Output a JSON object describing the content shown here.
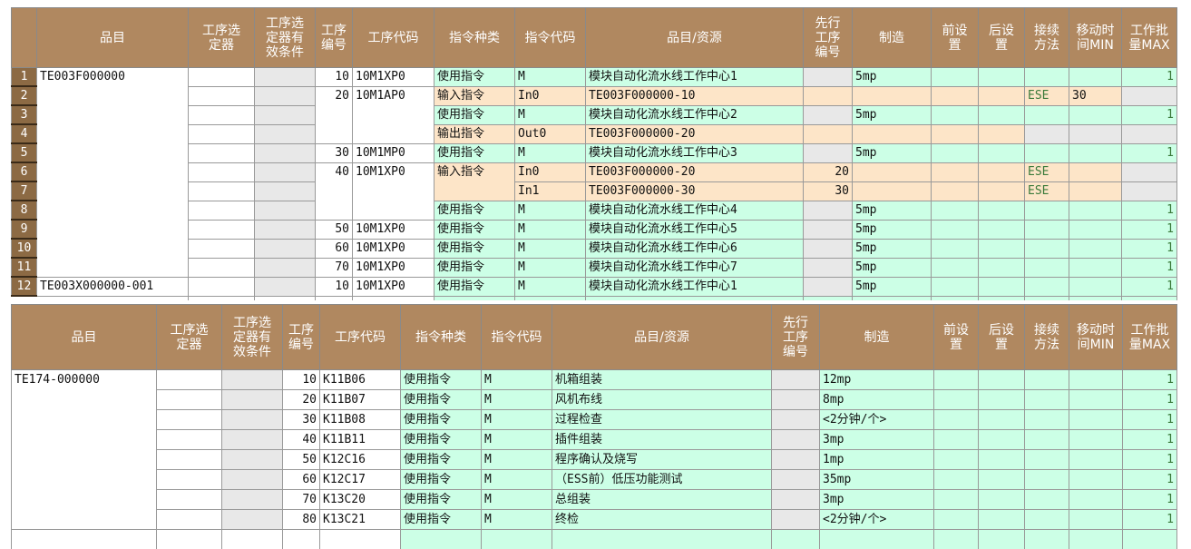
{
  "headers": [
    "品目",
    "工序选定器",
    "工序选定器有效条件",
    "工序编号",
    "工序代码",
    "指令种类",
    "指令代码",
    "品目/资源",
    "先行工序编号",
    "制造",
    "前设置",
    "后设置",
    "接续方法",
    "移动时间MIN",
    "工作批量MAX"
  ],
  "header_lines": [
    [
      "品目"
    ],
    [
      "工序选",
      "定器"
    ],
    [
      "工序选",
      "定器有",
      "效条件"
    ],
    [
      "工序",
      "编号"
    ],
    [
      "工序代码"
    ],
    [
      "指令种类"
    ],
    [
      "指令代码"
    ],
    [
      "品目/资源"
    ],
    [
      "先行",
      "工序",
      "编号"
    ],
    [
      "制造"
    ],
    [
      "前设",
      "置"
    ],
    [
      "后设",
      "置"
    ],
    [
      "接续",
      "方法"
    ],
    [
      "移动时",
      "间MIN"
    ],
    [
      "工作批",
      "量MAX"
    ]
  ],
  "colors": {
    "header": "#b08860",
    "use_row": "#ccffe6",
    "io_row": "#fde5c8",
    "gray": "#e8e8e8",
    "ese_text": "#3a7a3a"
  },
  "table1": {
    "rows": [
      {
        "rn": "1",
        "kind": "use",
        "item": "TE003F000000",
        "seq": "10",
        "code": "10M1XP0",
        "type": "使用指令",
        "icode": "M",
        "res": "模块自动化流水线工作中心1",
        "prev": "",
        "make": "5mp",
        "conn": "",
        "move": "",
        "batch": "1"
      },
      {
        "rn": "2",
        "kind": "in",
        "item": null,
        "seq": "20",
        "code": "10M1AP0",
        "type": "输入指令",
        "icode": "In0",
        "res": "TE003F000000-10",
        "prev": "",
        "make": "",
        "conn": "ESE",
        "move": "30",
        "batch": ""
      },
      {
        "rn": "3",
        "kind": "use",
        "item": null,
        "seq": null,
        "code": null,
        "type": "使用指令",
        "icode": "M",
        "res": "模块自动化流水线工作中心2",
        "prev": "",
        "make": "5mp",
        "conn": "",
        "move": "",
        "batch": "1"
      },
      {
        "rn": "4",
        "kind": "out",
        "item": null,
        "seq": null,
        "code": null,
        "type": "输出指令",
        "icode": "Out0",
        "res": "TE003F000000-20",
        "prev": "",
        "make": "",
        "conn": "",
        "move": "",
        "batch": ""
      },
      {
        "rn": "5",
        "kind": "use",
        "item": null,
        "seq": "30",
        "code": "10M1MP0",
        "type": "使用指令",
        "icode": "M",
        "res": "模块自动化流水线工作中心3",
        "prev": "",
        "make": "5mp",
        "conn": "",
        "move": "",
        "batch": "1"
      },
      {
        "rn": "6",
        "kind": "in",
        "item": null,
        "seq": "40",
        "code": "10M1XP0",
        "type": "输入指令",
        "icode": "In0",
        "res": "TE003F000000-20",
        "prev": "20",
        "make": "",
        "conn": "ESE",
        "move": "",
        "batch": ""
      },
      {
        "rn": "7",
        "kind": "in",
        "item": null,
        "seq": null,
        "code": null,
        "type": null,
        "icode": "In1",
        "res": "TE003F000000-30",
        "prev": "30",
        "make": "",
        "conn": "ESE",
        "move": "",
        "batch": ""
      },
      {
        "rn": "8",
        "kind": "use",
        "item": null,
        "seq": null,
        "code": null,
        "type": "使用指令",
        "icode": "M",
        "res": "模块自动化流水线工作中心4",
        "prev": "",
        "make": "5mp",
        "conn": "",
        "move": "",
        "batch": "1"
      },
      {
        "rn": "9",
        "kind": "use",
        "item": null,
        "seq": "50",
        "code": "10M1XP0",
        "type": "使用指令",
        "icode": "M",
        "res": "模块自动化流水线工作中心5",
        "prev": "",
        "make": "5mp",
        "conn": "",
        "move": "",
        "batch": "1"
      },
      {
        "rn": "10",
        "kind": "use",
        "item": null,
        "seq": "60",
        "code": "10M1XP0",
        "type": "使用指令",
        "icode": "M",
        "res": "模块自动化流水线工作中心6",
        "prev": "",
        "make": "5mp",
        "conn": "",
        "move": "",
        "batch": "1"
      },
      {
        "rn": "11",
        "kind": "use",
        "item": null,
        "seq": "70",
        "code": "10M1XP0",
        "type": "使用指令",
        "icode": "M",
        "res": "模块自动化流水线工作中心7",
        "prev": "",
        "make": "5mp",
        "conn": "",
        "move": "",
        "batch": "1"
      },
      {
        "rn": "12",
        "kind": "use",
        "item": "TE003X000000-001",
        "seq": "10",
        "code": "10M1XP0",
        "type": "使用指令",
        "icode": "M",
        "res": "模块自动化流水线工作中心1",
        "prev": "",
        "make": "5mp",
        "conn": "",
        "move": "",
        "batch": "1"
      }
    ]
  },
  "table2": {
    "rows": [
      {
        "kind": "use",
        "item": "TE174-000000",
        "seq": "10",
        "code": "K11B06",
        "type": "使用指令",
        "icode": "M",
        "res": "机箱组装",
        "prev": "",
        "make": "12mp",
        "conn": "",
        "move": "",
        "batch": "1"
      },
      {
        "kind": "use",
        "item": null,
        "seq": "20",
        "code": "K11B07",
        "type": "使用指令",
        "icode": "M",
        "res": "风机布线",
        "prev": "",
        "make": "8mp",
        "conn": "",
        "move": "",
        "batch": "1"
      },
      {
        "kind": "use",
        "item": null,
        "seq": "30",
        "code": "K11B08",
        "type": "使用指令",
        "icode": "M",
        "res": "过程检查",
        "prev": "",
        "make": "<2分钟/个>",
        "conn": "",
        "move": "",
        "batch": "1"
      },
      {
        "kind": "use",
        "item": null,
        "seq": "40",
        "code": "K11B11",
        "type": "使用指令",
        "icode": "M",
        "res": "插件组装",
        "prev": "",
        "make": "3mp",
        "conn": "",
        "move": "",
        "batch": "1"
      },
      {
        "kind": "use",
        "item": null,
        "seq": "50",
        "code": "K12C16",
        "type": "使用指令",
        "icode": "M",
        "res": "程序确认及烧写",
        "prev": "",
        "make": "1mp",
        "conn": "",
        "move": "",
        "batch": "1"
      },
      {
        "kind": "use",
        "item": null,
        "seq": "60",
        "code": "K12C17",
        "type": "使用指令",
        "icode": "M",
        "res": "（ESS前）低压功能测试",
        "prev": "",
        "make": "35mp",
        "conn": "",
        "move": "",
        "batch": "1"
      },
      {
        "kind": "use",
        "item": null,
        "seq": "70",
        "code": "K13C20",
        "type": "使用指令",
        "icode": "M",
        "res": "总组装",
        "prev": "",
        "make": "3mp",
        "conn": "",
        "move": "",
        "batch": "1"
      },
      {
        "kind": "use",
        "item": null,
        "seq": "80",
        "code": "K13C21",
        "type": "使用指令",
        "icode": "M",
        "res": "终检",
        "prev": "",
        "make": "<2分钟/个>",
        "conn": "",
        "move": "",
        "batch": "1"
      }
    ]
  }
}
